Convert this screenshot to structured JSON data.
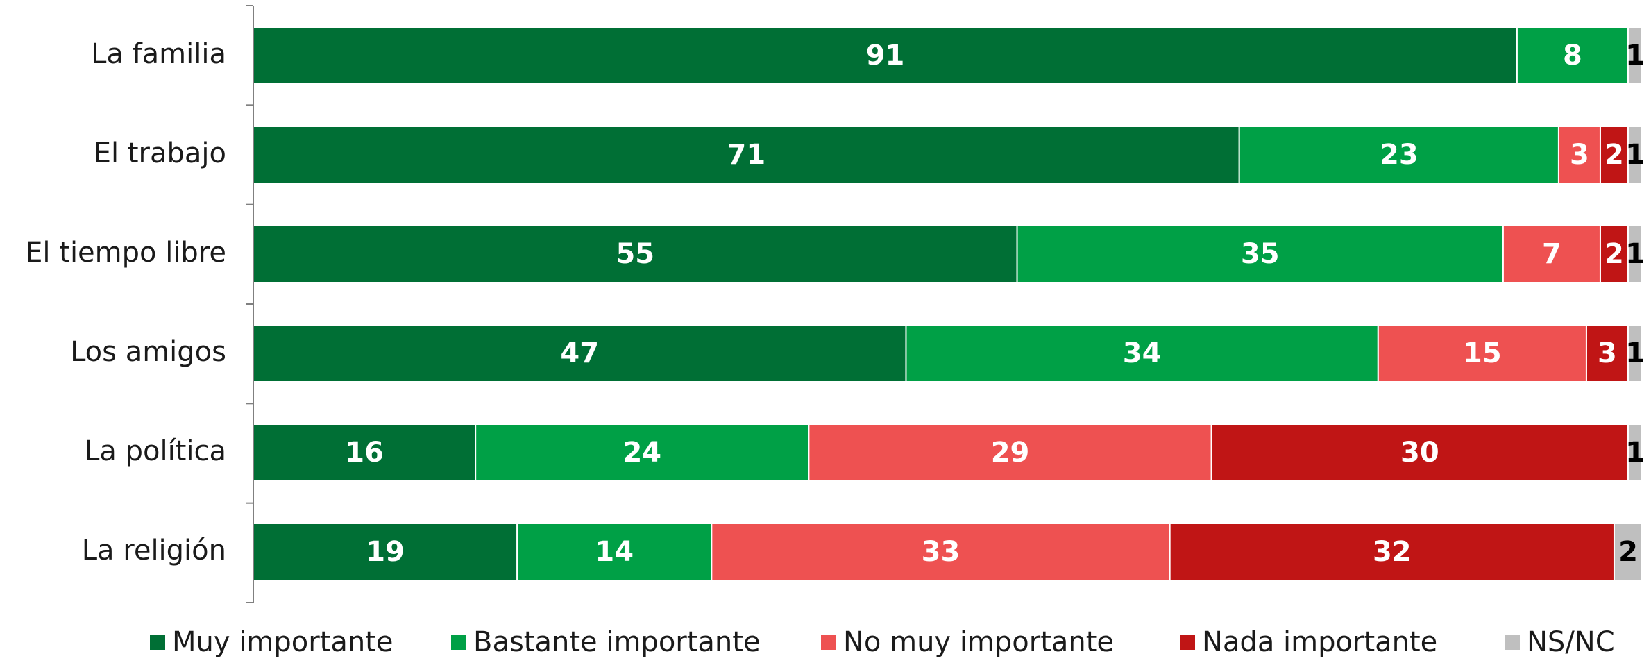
{
  "chart_data": {
    "type": "bar",
    "orientation": "horizontal",
    "stacked": true,
    "categories": [
      "La familia",
      "El trabajo",
      "El tiempo libre",
      "Los amigos",
      "La política",
      "La religión"
    ],
    "series": [
      {
        "name": "Muy importante",
        "color": "#006f35",
        "label_color": "#ffffff",
        "values": [
          91,
          71,
          55,
          47,
          16,
          19
        ]
      },
      {
        "name": "Bastante importante",
        "color": "#00a046",
        "label_color": "#ffffff",
        "values": [
          8,
          23,
          35,
          34,
          24,
          14
        ]
      },
      {
        "name": "No muy importante",
        "color": "#ee5151",
        "label_color": "#ffffff",
        "values": [
          0,
          3,
          7,
          15,
          29,
          33
        ]
      },
      {
        "name": "Nada importante",
        "color": "#c01515",
        "label_color": "#ffffff",
        "values": [
          0,
          2,
          2,
          3,
          30,
          32
        ]
      },
      {
        "name": "NS/NC",
        "color": "#bfbfbf",
        "label_color": "#000000",
        "values": [
          1,
          1,
          1,
          1,
          1,
          2
        ]
      }
    ],
    "xlim": [
      0,
      100
    ],
    "grid": false,
    "legend_position": "bottom"
  }
}
